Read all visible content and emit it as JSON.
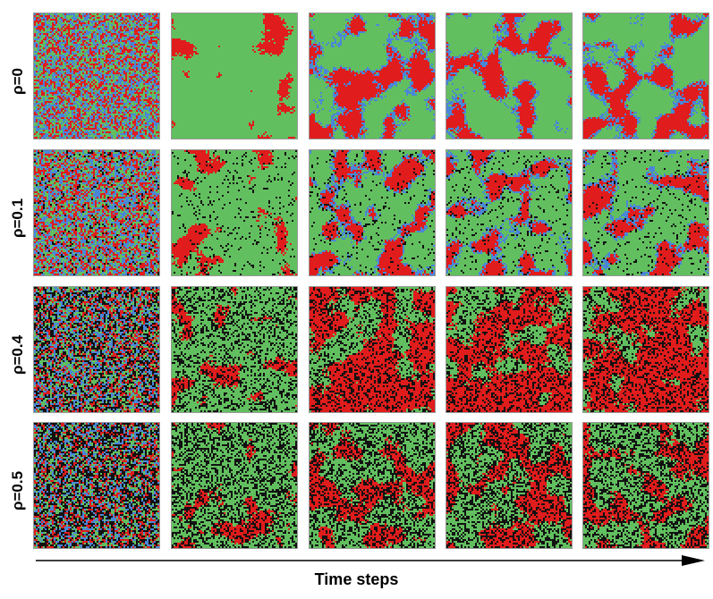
{
  "figure": {
    "rows": [
      {
        "label": "ρ=0",
        "rho": 0
      },
      {
        "label": "ρ=0.1",
        "rho": 0.1
      },
      {
        "label": "ρ=0.4",
        "rho": 0.4
      },
      {
        "label": "ρ=0.5",
        "rho": 0.5
      }
    ],
    "time_axis_label": "Time steps",
    "colors": {
      "green": "#62bf5f",
      "red": "#e01c1c",
      "blue": "#4a86d8",
      "black": "#111111",
      "arrow": "#000000"
    }
  }
}
